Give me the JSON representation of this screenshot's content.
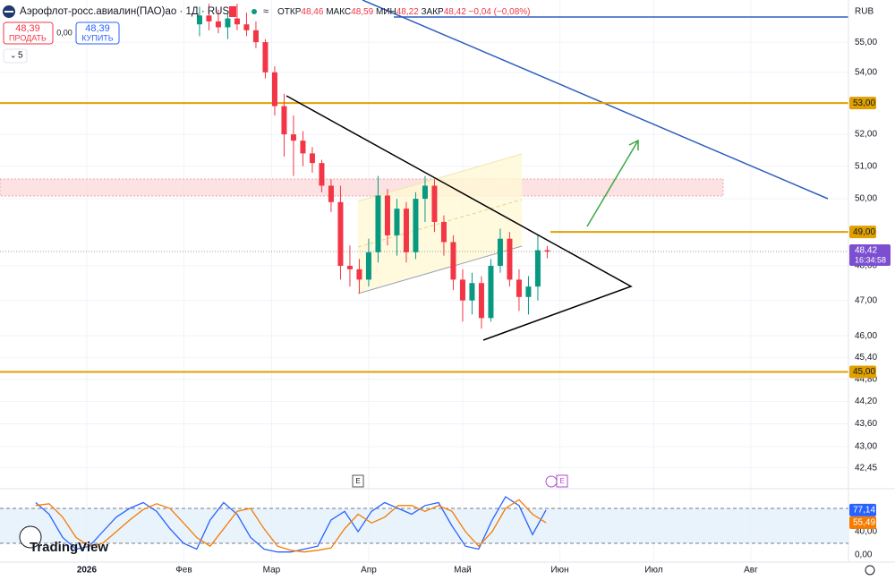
{
  "header": {
    "title": "Аэрофлот-росс.авиалин(ПАО)ао · 1Д · RUS",
    "ohlc": [
      {
        "label": "ОТКР",
        "value": "48,46"
      },
      {
        "label": "МАКС",
        "value": "48,59"
      },
      {
        "label": "МИН",
        "value": "48,22"
      },
      {
        "label": "ЗАКР",
        "value": "48,42"
      }
    ],
    "change": "−0,04 (−0,08%)",
    "currency": "RUB",
    "sell": {
      "price": "48,39",
      "label": "ПРОДАТЬ"
    },
    "spread": "0,00",
    "buy": {
      "price": "48,39",
      "label": "КУПИТЬ"
    },
    "indicators_count": "5",
    "logo": "TradingView",
    "event_marker": "E"
  },
  "chart_data": {
    "type": "candlestick",
    "log_scale": true,
    "xlim": [
      -27.7,
      242.3
    ],
    "ylim": [
      42.05,
      56.43
    ],
    "xticks": [
      {
        "value": 0,
        "label": "2026"
      },
      {
        "value": 31,
        "label": "Фев"
      },
      {
        "value": 59,
        "label": "Мар"
      },
      {
        "value": 90,
        "label": "Апр"
      },
      {
        "value": 120,
        "label": "Май"
      },
      {
        "value": 151,
        "label": "Июн"
      },
      {
        "value": 181,
        "label": "Июл"
      },
      {
        "value": 212,
        "label": "Авг"
      }
    ],
    "yticks": [
      {
        "value": 55,
        "label": "55,00"
      },
      {
        "value": 54,
        "label": "54,00"
      },
      {
        "value": 52,
        "label": "52,00"
      },
      {
        "value": 51,
        "label": "51,00"
      },
      {
        "value": 50,
        "label": "50,00"
      },
      {
        "value": 48,
        "label": "48,00"
      },
      {
        "value": 47,
        "label": "47,00"
      },
      {
        "value": 46,
        "label": "46,00"
      },
      {
        "value": 45.4,
        "label": "45,40"
      },
      {
        "value": 44.8,
        "label": "44,80"
      },
      {
        "value": 44.2,
        "label": "44,20"
      },
      {
        "value": 43.6,
        "label": "43,60"
      },
      {
        "value": 43,
        "label": "43,00"
      },
      {
        "value": 42.45,
        "label": "42,45"
      }
    ],
    "up_color": "#089981",
    "down_color": "#f23645",
    "candles": {
      "x": [
        36,
        39,
        42,
        45,
        48,
        51,
        54,
        57,
        60,
        63,
        66,
        69,
        72,
        75,
        78,
        81,
        84,
        87,
        90,
        93,
        96,
        99,
        102,
        105,
        108,
        111,
        114,
        117,
        120,
        123,
        126,
        129,
        132,
        135,
        138,
        141,
        144,
        147
      ],
      "open": [
        55.6,
        55.9,
        55.7,
        55.5,
        55.8,
        55.6,
        55.4,
        55.0,
        54.0,
        52.9,
        52.0,
        51.8,
        51.4,
        51.1,
        50.4,
        49.9,
        48.0,
        47.9,
        47.6,
        48.4,
        50.1,
        48.9,
        49.7,
        48.4,
        50.0,
        50.4,
        49.3,
        48.7,
        47.6,
        47.0,
        47.5,
        46.5,
        48.0,
        48.8,
        47.6,
        47.1,
        47.4,
        48.46
      ],
      "high": [
        56.2,
        56.3,
        56.1,
        56.0,
        56.3,
        56.0,
        55.7,
        55.1,
        54.2,
        53.3,
        52.6,
        52.1,
        51.6,
        51.2,
        50.6,
        50.4,
        48.6,
        48.2,
        48.8,
        50.7,
        50.3,
        50.0,
        49.9,
        50.2,
        50.7,
        50.6,
        49.5,
        48.9,
        47.9,
        47.8,
        47.7,
        48.2,
        49.1,
        49.0,
        47.9,
        47.7,
        48.9,
        48.59
      ],
      "low": [
        55.2,
        55.4,
        55.3,
        55.1,
        55.4,
        55.2,
        54.8,
        53.8,
        52.6,
        51.3,
        50.7,
        51.0,
        50.8,
        50.2,
        49.6,
        47.6,
        47.4,
        47.2,
        47.4,
        48.1,
        48.6,
        48.3,
        48.1,
        48.2,
        49.3,
        49.0,
        48.3,
        47.3,
        46.4,
        46.6,
        46.2,
        46.4,
        47.8,
        47.4,
        46.7,
        46.6,
        47.0,
        48.22
      ],
      "close": [
        55.9,
        55.7,
        55.5,
        55.8,
        55.6,
        55.4,
        55.0,
        54.0,
        52.9,
        52.0,
        51.8,
        51.4,
        51.1,
        50.4,
        49.9,
        48.0,
        47.9,
        47.6,
        48.4,
        50.1,
        48.9,
        49.7,
        48.4,
        50.0,
        50.4,
        49.3,
        48.7,
        47.6,
        47.0,
        47.5,
        46.5,
        48.0,
        48.8,
        47.6,
        47.1,
        47.4,
        48.46,
        48.42
      ]
    },
    "levels": [
      {
        "value": 53,
        "label": "53,00"
      },
      {
        "value": 49,
        "label": "49,00"
      },
      {
        "value": 45,
        "label": "45,00"
      }
    ],
    "level_color": "#e0a100",
    "price_label": {
      "value": 48.42,
      "label": "48,42",
      "timer": "16:34:58",
      "color": "#7b4fd0"
    },
    "oscillator": {
      "ylim": [
        -7.7,
        110.8
      ],
      "yticks": [
        {
          "value": 0,
          "label": "0,00"
        },
        {
          "value": 40,
          "label": "40,00"
        }
      ],
      "bands": [
        20,
        80
      ],
      "x": [
        -16.3,
        -12,
        -7.7,
        -3.4,
        0.9,
        5.1,
        9.4,
        13.7,
        18,
        22.3,
        26.6,
        30.9,
        35.1,
        39.4,
        43.7,
        48,
        52.3,
        56.6,
        60.9,
        65.1,
        69.4,
        73.7,
        78,
        82.3,
        86.6,
        90.9,
        95.1,
        99.4,
        103.7,
        108,
        112.3,
        116.6,
        120.9,
        125.1,
        129.4,
        133.7,
        138,
        142.3,
        146.6
      ],
      "series": [
        {
          "color": "#2962ff",
          "last_label": "77,14",
          "values": [
            90,
            70,
            30,
            10,
            15,
            40,
            65,
            80,
            90,
            75,
            45,
            20,
            10,
            60,
            90,
            70,
            30,
            10,
            5,
            5,
            10,
            15,
            60,
            75,
            40,
            75,
            90,
            80,
            70,
            85,
            90,
            50,
            15,
            10,
            60,
            100,
            85,
            35,
            77.14
          ]
        },
        {
          "color": "#f57c00",
          "last_label": "55,49",
          "values": [
            85,
            88,
            65,
            30,
            15,
            20,
            40,
            60,
            78,
            88,
            80,
            55,
            30,
            15,
            45,
            75,
            80,
            45,
            15,
            8,
            5,
            8,
            12,
            45,
            70,
            55,
            65,
            85,
            85,
            75,
            85,
            75,
            40,
            15,
            40,
            80,
            95,
            70,
            55.49
          ]
        }
      ]
    }
  }
}
